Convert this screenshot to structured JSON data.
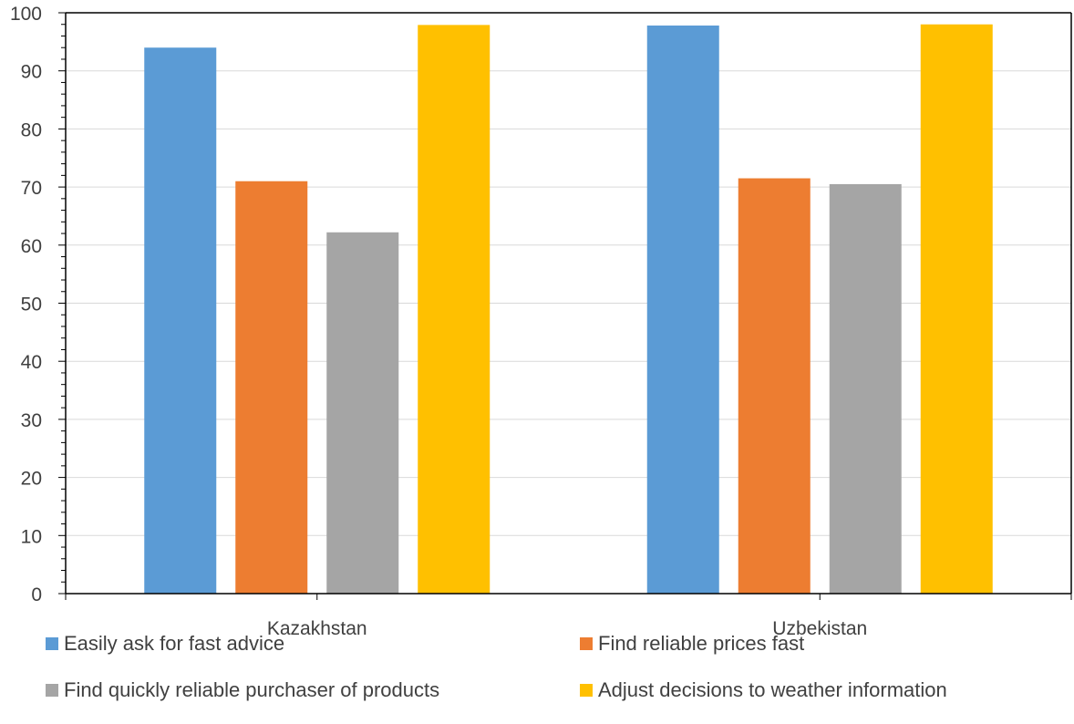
{
  "chart_data": {
    "type": "bar",
    "title": "",
    "xlabel": "",
    "ylabel": "",
    "ylim": [
      0,
      100
    ],
    "yticks": [
      0,
      10,
      20,
      30,
      40,
      50,
      60,
      70,
      80,
      90,
      100
    ],
    "categories": [
      "Kazakhstan",
      "Uzbekistan"
    ],
    "grid": true,
    "legend_position": "bottom",
    "series": [
      {
        "name": "Easily ask for fast advice",
        "color": "#5B9BD5",
        "values": [
          94,
          97.8
        ]
      },
      {
        "name": "Find reliable prices fast",
        "color": "#ED7D31",
        "values": [
          71,
          71.5
        ]
      },
      {
        "name": "Find quickly reliable purchaser of products",
        "color": "#A5A5A5",
        "values": [
          62.2,
          70.5
        ]
      },
      {
        "name": "Adjust decisions to weather information",
        "color": "#FFC000",
        "values": [
          97.9,
          98
        ]
      }
    ]
  }
}
